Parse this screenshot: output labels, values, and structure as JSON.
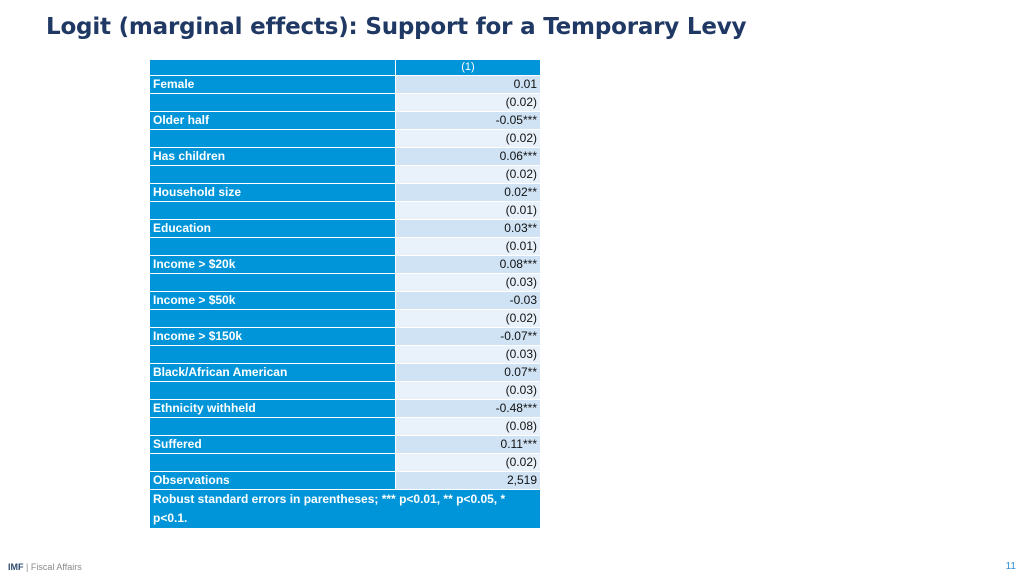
{
  "slide": {
    "title": "Logit (marginal effects): Support for a Temporary Levy",
    "page_number": "11"
  },
  "footer": {
    "brand": "IMF",
    "separator": "|",
    "department": "Fiscal Affairs"
  },
  "table": {
    "column_header": "(1)",
    "rows": [
      {
        "label": "Female",
        "coef": "0.01",
        "se": "(0.02)"
      },
      {
        "label": "Older half",
        "coef": "-0.05***",
        "se": "(0.02)"
      },
      {
        "label": "Has children",
        "coef": "0.06***",
        "se": "(0.02)"
      },
      {
        "label": "Household size",
        "coef": "0.02**",
        "se": "(0.01)"
      },
      {
        "label": "Education",
        "coef": "0.03**",
        "se": "(0.01)"
      },
      {
        "label": "Income > $20k",
        "coef": "0.08***",
        "se": "(0.03)"
      },
      {
        "label": "Income > $50k",
        "coef": "-0.03",
        "se": "(0.02)"
      },
      {
        "label": "Income > $150k",
        "coef": "-0.07**",
        "se": "(0.03)"
      },
      {
        "label": "Black/African American",
        "coef": "0.07**",
        "se": "(0.03)"
      },
      {
        "label": "Ethnicity withheld",
        "coef": "-0.48***",
        "se": "(0.08)"
      },
      {
        "label": "Suffered",
        "coef": "0.11***",
        "se": "(0.02)"
      }
    ],
    "observations_label": "Observations",
    "observations_value": "2,519",
    "note": "Robust standard errors in parentheses; *** p<0.01, ** p<0.05, * p<0.1."
  }
}
